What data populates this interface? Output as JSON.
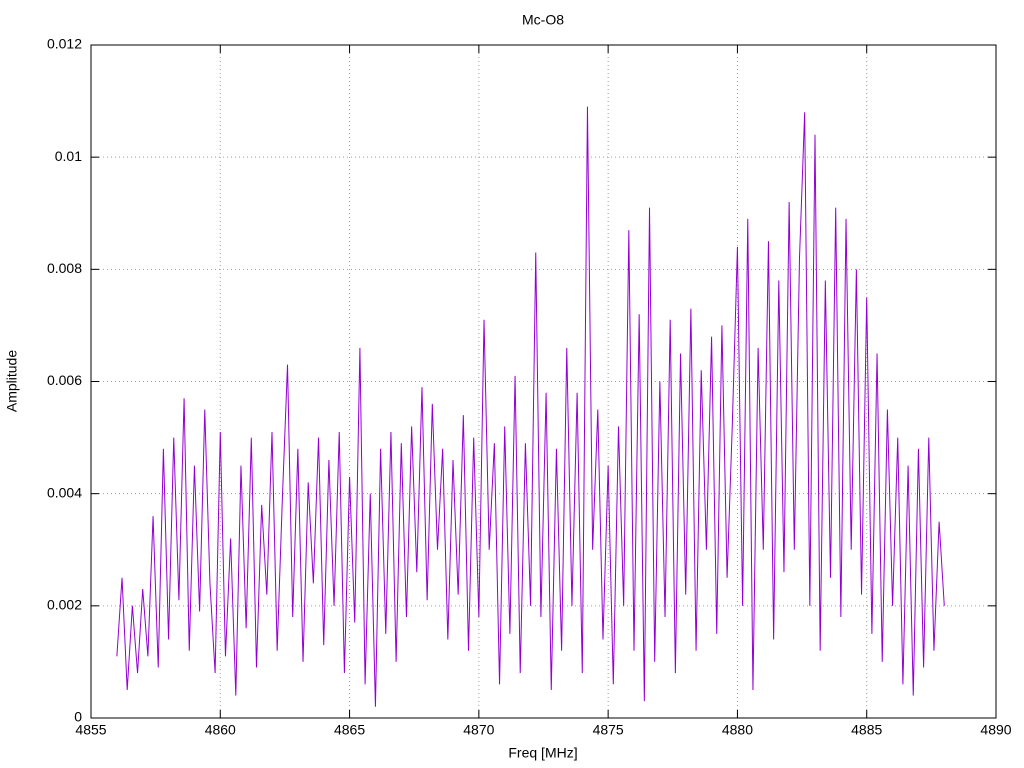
{
  "chart_data": {
    "type": "line",
    "title": "Mc-O8",
    "x_label": "Freq [MHz]",
    "y_label": "Amplitude",
    "xlim": [
      4855,
      4890
    ],
    "xticks": [
      4855,
      4860,
      4865,
      4870,
      4875,
      4880,
      4885,
      4890
    ],
    "ylim": [
      0,
      0.012
    ],
    "yticks": [
      0,
      0.002,
      0.004,
      0.006,
      0.008,
      0.01,
      0.012
    ],
    "grid": true,
    "x": [
      4856,
      4856.2,
      4856.4,
      4856.6,
      4856.8,
      4857,
      4857.2,
      4857.4,
      4857.6,
      4857.8,
      4858,
      4858.2,
      4858.4,
      4858.6,
      4858.8,
      4859,
      4859.2,
      4859.4,
      4859.6,
      4859.8,
      4860,
      4860.2,
      4860.4,
      4860.6,
      4860.8,
      4861,
      4861.2,
      4861.4,
      4861.6,
      4861.8,
      4862,
      4862.2,
      4862.4,
      4862.6,
      4862.8,
      4863,
      4863.2,
      4863.4,
      4863.6,
      4863.8,
      4864,
      4864.2,
      4864.4,
      4864.6,
      4864.8,
      4865,
      4865.2,
      4865.4,
      4865.6,
      4865.8,
      4866,
      4866.2,
      4866.4,
      4866.6,
      4866.8,
      4867,
      4867.2,
      4867.4,
      4867.6,
      4867.8,
      4868,
      4868.2,
      4868.4,
      4868.6,
      4868.8,
      4869,
      4869.2,
      4869.4,
      4869.6,
      4869.8,
      4870,
      4870.2,
      4870.4,
      4870.6,
      4870.8,
      4871,
      4871.2,
      4871.4,
      4871.6,
      4871.8,
      4872,
      4872.2,
      4872.4,
      4872.6,
      4872.8,
      4873,
      4873.2,
      4873.4,
      4873.6,
      4873.8,
      4874,
      4874.2,
      4874.4,
      4874.6,
      4874.8,
      4875,
      4875.2,
      4875.4,
      4875.6,
      4875.8,
      4876,
      4876.2,
      4876.4,
      4876.6,
      4876.8,
      4877,
      4877.2,
      4877.4,
      4877.6,
      4877.8,
      4878,
      4878.2,
      4878.4,
      4878.6,
      4878.8,
      4879,
      4879.2,
      4879.4,
      4879.6,
      4879.8,
      4880,
      4880.2,
      4880.4,
      4880.6,
      4880.8,
      4881,
      4881.2,
      4881.4,
      4881.6,
      4881.8,
      4882,
      4882.2,
      4882.4,
      4882.6,
      4882.8,
      4883,
      4883.2,
      4883.4,
      4883.6,
      4883.8,
      4884,
      4884.2,
      4884.4,
      4884.6,
      4884.8,
      4885,
      4885.2,
      4885.4,
      4885.6,
      4885.8,
      4886,
      4886.2,
      4886.4,
      4886.6,
      4886.8,
      4887,
      4887.2,
      4887.4,
      4887.6,
      4887.8,
      4888
    ],
    "series": [
      {
        "name": "Mc-O8",
        "color": "#9400d3",
        "values": [
          0.0011,
          0.0025,
          0.0005,
          0.002,
          0.0008,
          0.0023,
          0.0011,
          0.0036,
          0.0009,
          0.0048,
          0.0014,
          0.005,
          0.0021,
          0.0057,
          0.0012,
          0.0045,
          0.0019,
          0.0055,
          0.0024,
          0.0008,
          0.0051,
          0.0011,
          0.0032,
          0.0004,
          0.0045,
          0.0016,
          0.005,
          0.0009,
          0.0038,
          0.0022,
          0.0051,
          0.0012,
          0.0039,
          0.0063,
          0.0018,
          0.0048,
          0.001,
          0.0042,
          0.0024,
          0.005,
          0.0013,
          0.0046,
          0.002,
          0.0051,
          0.0008,
          0.0043,
          0.0017,
          0.0066,
          0.0006,
          0.004,
          0.0002,
          0.0048,
          0.0015,
          0.0051,
          0.001,
          0.0049,
          0.0018,
          0.0052,
          0.0026,
          0.0059,
          0.0021,
          0.0056,
          0.003,
          0.0048,
          0.0014,
          0.0046,
          0.0022,
          0.0054,
          0.0012,
          0.005,
          0.0018,
          0.0071,
          0.003,
          0.0049,
          0.0006,
          0.0052,
          0.0015,
          0.0061,
          0.0008,
          0.0049,
          0.002,
          0.0083,
          0.0018,
          0.0058,
          0.0005,
          0.0048,
          0.0012,
          0.0066,
          0.002,
          0.0058,
          0.0008,
          0.0109,
          0.003,
          0.0055,
          0.0014,
          0.0045,
          0.0006,
          0.0052,
          0.002,
          0.0087,
          0.0012,
          0.0072,
          0.0003,
          0.0091,
          0.001,
          0.006,
          0.0018,
          0.0071,
          0.0008,
          0.0065,
          0.0022,
          0.0073,
          0.0012,
          0.0062,
          0.003,
          0.0068,
          0.0015,
          0.007,
          0.0025,
          0.0052,
          0.0084,
          0.002,
          0.0089,
          0.0005,
          0.0066,
          0.003,
          0.0085,
          0.0014,
          0.0078,
          0.0026,
          0.0092,
          0.003,
          0.0082,
          0.0108,
          0.002,
          0.0104,
          0.0012,
          0.0078,
          0.0025,
          0.0091,
          0.0018,
          0.0089,
          0.003,
          0.008,
          0.0022,
          0.0075,
          0.0015,
          0.0065,
          0.001,
          0.0055,
          0.002,
          0.005,
          0.0006,
          0.0045,
          0.0004,
          0.0048,
          0.0009,
          0.005,
          0.0012,
          0.0035,
          0.002
        ]
      }
    ]
  }
}
